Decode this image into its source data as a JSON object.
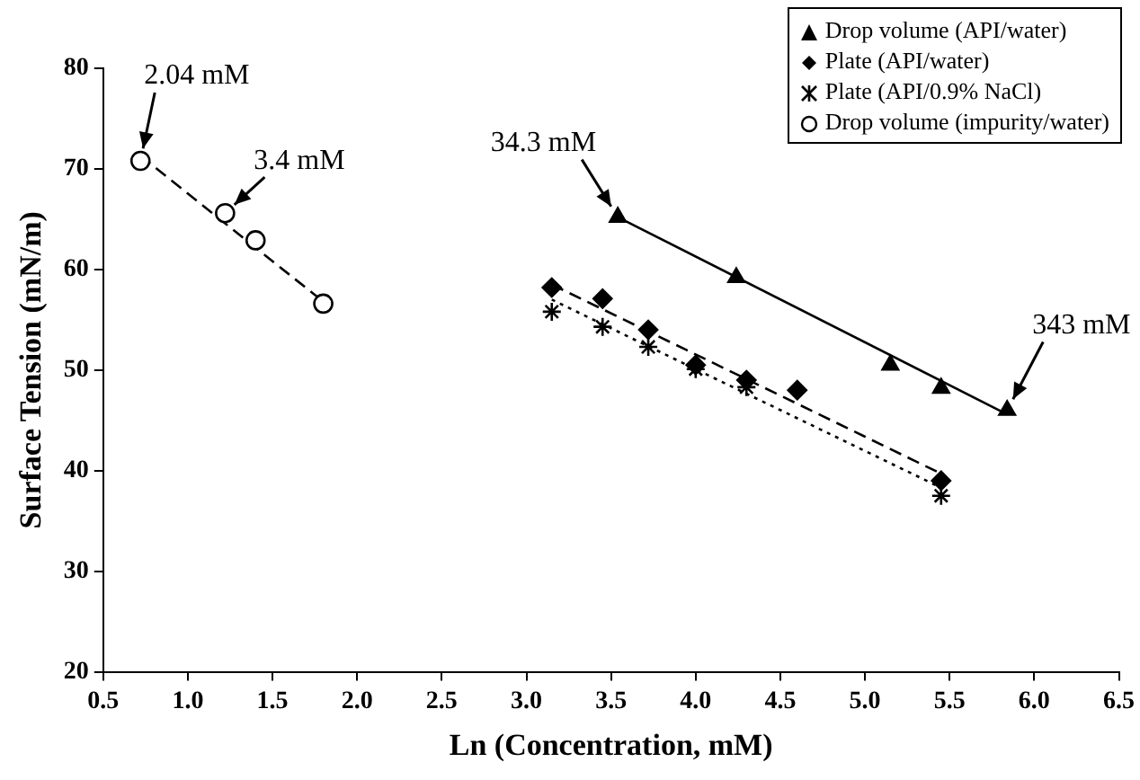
{
  "chart_data": {
    "type": "scatter",
    "xlabel": "Ln (Concentration, mM)",
    "ylabel": "Surface Tension (mN/m)",
    "xlim": [
      0.5,
      6.5
    ],
    "xticks": [
      0.5,
      {
        "value": 1,
        "label": "1.0"
      },
      1.5,
      {
        "value": 2,
        "label": "2.0"
      },
      2.5,
      {
        "value": 3,
        "label": "3.0"
      },
      3.5,
      {
        "value": 4,
        "label": "4.0"
      },
      4.5,
      {
        "value": 5,
        "label": "5.0"
      },
      5.5,
      {
        "value": 6,
        "label": "6.0"
      },
      6.5
    ],
    "ylim": [
      20,
      80
    ],
    "yticks": [
      20,
      30,
      40,
      50,
      60,
      70,
      80
    ],
    "grid": false,
    "legend": "top right",
    "series": [
      {
        "name": "Drop volume (API/water)",
        "color": "#000000",
        "marker": "triangle",
        "x": [
          3.54,
          4.24,
          5.15,
          5.45,
          5.84
        ],
        "values": [
          65.2,
          59.2,
          50.5,
          48.2,
          46
        ]
      },
      {
        "name": "Plate (API/water)",
        "color": "#000000",
        "marker": "diamond",
        "x": [
          3.15,
          3.45,
          3.72,
          4.0,
          4.3,
          4.6,
          5.45
        ],
        "values": [
          58.2,
          57.1,
          54,
          50.5,
          49,
          48,
          39
        ]
      },
      {
        "name": "Plate (API/0.9% NaCl)",
        "color": "#000000",
        "marker": "cross",
        "x": [
          3.15,
          3.45,
          3.72,
          4.0,
          4.3,
          5.45
        ],
        "values": [
          55.8,
          54.3,
          52.3,
          50.1,
          48.3,
          37.5
        ]
      },
      {
        "name": "Drop volume (impurity/water)",
        "color": "#000000",
        "marker": "circle",
        "x": [
          0.72,
          1.22,
          1.4,
          1.8
        ],
        "values": [
          70.8,
          65.6,
          62.9,
          56.6
        ]
      },
      {
        "type": "line",
        "color": "#000000",
        "marker": "none",
        "line_style": "solid",
        "x": [
          3.54,
          5.84
        ],
        "values": [
          65.2,
          45.6
        ]
      },
      {
        "type": "line",
        "color": "#000000",
        "marker": "none",
        "line_style": "dashed",
        "x": [
          3.15,
          5.45
        ],
        "values": [
          58.5,
          39.7
        ]
      },
      {
        "type": "line",
        "color": "#000000",
        "marker": "none",
        "line_style": "dotted",
        "x": [
          3.15,
          5.45
        ],
        "values": [
          57,
          38.3
        ]
      },
      {
        "type": "line",
        "color": "#000000",
        "marker": "none",
        "line_style": "dashed",
        "x": [
          0.72,
          1.8
        ],
        "values": [
          71.3,
          56.8
        ]
      }
    ],
    "annotations": [
      {
        "text": "2.04 mM",
        "x": 0.72,
        "y": 70.8
      },
      {
        "text": "3.4 mM",
        "x": 1.22,
        "y": 65.6
      },
      {
        "text": "34.3 mM",
        "x": 3.54,
        "y": 65.2
      },
      {
        "text": "343 mM",
        "x": 5.84,
        "y": 46
      }
    ]
  }
}
